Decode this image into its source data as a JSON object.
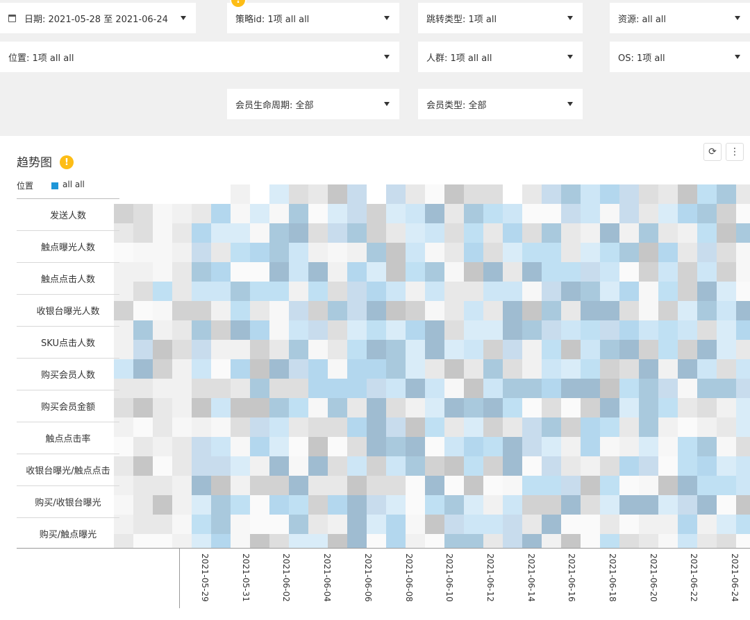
{
  "filters": {
    "date": "日期: 2021-05-28 至 2021-06-24",
    "strategy": "策略id: 1项 all all",
    "jump_type": "跳转类型: 1项 all",
    "resource": "资源: all all",
    "position": "位置: 1项 all all",
    "crowd": "人群: 1项 all all",
    "os": "OS: 1项 all",
    "member_lifecycle": "会员生命周期: 全部",
    "member_type": "会员类型: 全部"
  },
  "warning_symbol": "!",
  "chart_title": "趋势图",
  "refresh_symbol": "⟳",
  "more_symbol": "⋮",
  "legend": {
    "label": "位置",
    "series": "all all",
    "series_color": "#1e96d8"
  },
  "chart_data": {
    "type": "heatmap",
    "rows": [
      "发送人数",
      "触点曝光人数",
      "触点点击人数",
      "收银台曝光人数",
      "SKU点击人数",
      "购买会员人数",
      "购买会员金额",
      "触点点击率",
      "收银台曝光/触点点击",
      "购买/收银台曝光",
      "购买/触点曝光"
    ],
    "x_ticks": [
      "2021-05-29",
      "2021-05-31",
      "2021-06-02",
      "2021-06-04",
      "2021-06-06",
      "2021-06-08",
      "2021-06-10",
      "2021-06-12",
      "2021-06-14",
      "2021-06-16",
      "2021-06-18",
      "2021-06-20",
      "2021-06-22",
      "2021-06-24"
    ]
  }
}
